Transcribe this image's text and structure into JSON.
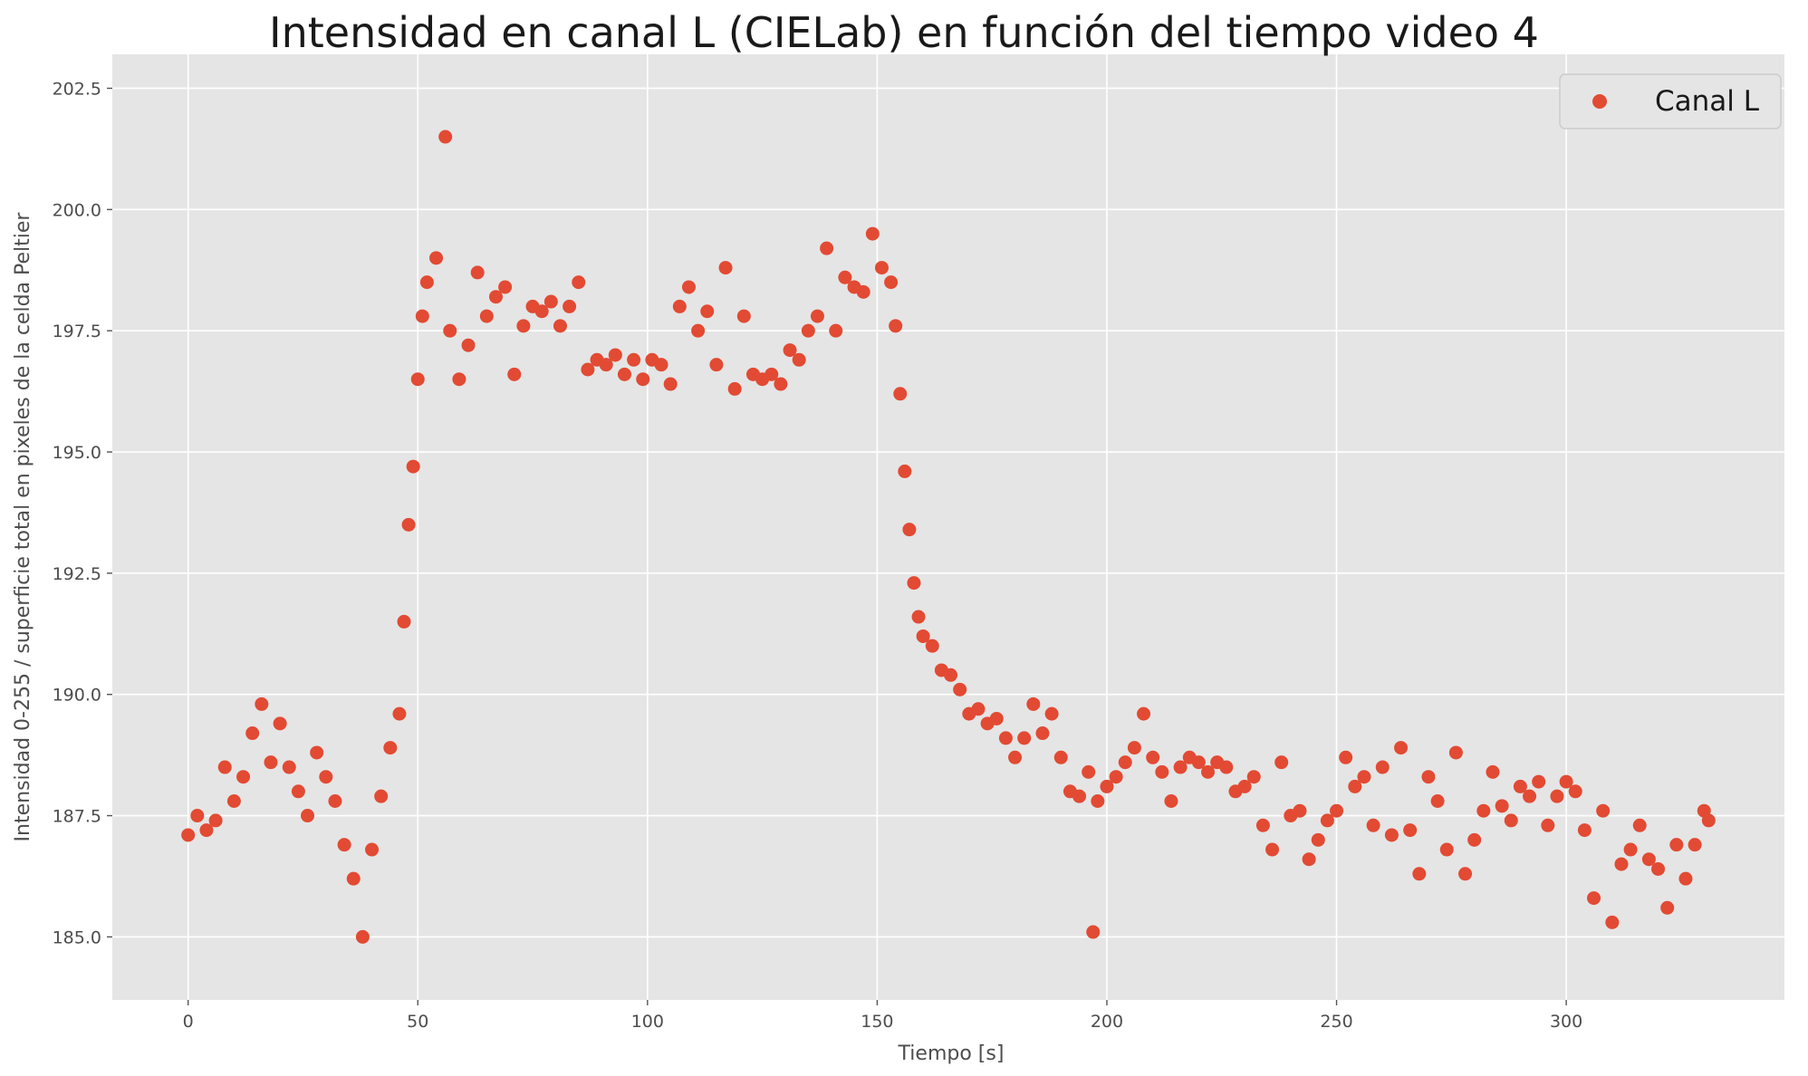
{
  "chart_data": {
    "type": "scatter",
    "title": "Intensidad en canal L (CIELab) en función del tiempo video 4",
    "xlabel": "Tiempo [s]",
    "ylabel": "Intensidad 0-255 / superficie total en pixeles de la celda Peltier",
    "xlim": [
      -16.5,
      347.5
    ],
    "ylim": [
      183.7,
      203.2
    ],
    "xticks": [
      0,
      50,
      100,
      150,
      200,
      250,
      300
    ],
    "xtick_labels": [
      "0",
      "50",
      "100",
      "150",
      "200",
      "250",
      "300"
    ],
    "yticks": [
      185.0,
      187.5,
      190.0,
      192.5,
      195.0,
      197.5,
      200.0,
      202.5
    ],
    "ytick_labels": [
      "185.0",
      "187.5",
      "190.0",
      "192.5",
      "195.0",
      "197.5",
      "200.0",
      "202.5"
    ],
    "grid": true,
    "legend_position": "top-right",
    "series": [
      {
        "name": "Canal L",
        "color": "#E24A33",
        "marker": "circle",
        "points": [
          [
            0,
            187.1
          ],
          [
            2,
            187.5
          ],
          [
            4,
            187.2
          ],
          [
            6,
            187.4
          ],
          [
            8,
            188.5
          ],
          [
            10,
            187.8
          ],
          [
            12,
            188.3
          ],
          [
            14,
            189.2
          ],
          [
            16,
            189.8
          ],
          [
            18,
            188.6
          ],
          [
            20,
            189.4
          ],
          [
            22,
            188.5
          ],
          [
            24,
            188.0
          ],
          [
            26,
            187.5
          ],
          [
            28,
            188.8
          ],
          [
            30,
            188.3
          ],
          [
            32,
            187.8
          ],
          [
            34,
            186.9
          ],
          [
            36,
            186.2
          ],
          [
            38,
            185.0
          ],
          [
            40,
            186.8
          ],
          [
            42,
            187.9
          ],
          [
            44,
            188.9
          ],
          [
            46,
            189.6
          ],
          [
            47,
            191.5
          ],
          [
            48,
            193.5
          ],
          [
            49,
            194.7
          ],
          [
            50,
            196.5
          ],
          [
            51,
            197.8
          ],
          [
            52,
            198.5
          ],
          [
            54,
            199.0
          ],
          [
            56,
            201.5
          ],
          [
            57,
            197.5
          ],
          [
            59,
            196.5
          ],
          [
            61,
            197.2
          ],
          [
            63,
            198.7
          ],
          [
            65,
            197.8
          ],
          [
            67,
            198.2
          ],
          [
            69,
            198.4
          ],
          [
            71,
            196.6
          ],
          [
            73,
            197.6
          ],
          [
            75,
            198.0
          ],
          [
            77,
            197.9
          ],
          [
            79,
            198.1
          ],
          [
            81,
            197.6
          ],
          [
            83,
            198.0
          ],
          [
            85,
            198.5
          ],
          [
            87,
            196.7
          ],
          [
            89,
            196.9
          ],
          [
            91,
            196.8
          ],
          [
            93,
            197.0
          ],
          [
            95,
            196.6
          ],
          [
            97,
            196.9
          ],
          [
            99,
            196.5
          ],
          [
            101,
            196.9
          ],
          [
            103,
            196.8
          ],
          [
            105,
            196.4
          ],
          [
            107,
            198.0
          ],
          [
            109,
            198.4
          ],
          [
            111,
            197.5
          ],
          [
            113,
            197.9
          ],
          [
            115,
            196.8
          ],
          [
            117,
            198.8
          ],
          [
            119,
            196.3
          ],
          [
            121,
            197.8
          ],
          [
            123,
            196.6
          ],
          [
            125,
            196.5
          ],
          [
            127,
            196.6
          ],
          [
            129,
            196.4
          ],
          [
            131,
            197.1
          ],
          [
            133,
            196.9
          ],
          [
            135,
            197.5
          ],
          [
            137,
            197.8
          ],
          [
            139,
            199.2
          ],
          [
            141,
            197.5
          ],
          [
            143,
            198.6
          ],
          [
            145,
            198.4
          ],
          [
            147,
            198.3
          ],
          [
            149,
            199.5
          ],
          [
            151,
            198.8
          ],
          [
            153,
            198.5
          ],
          [
            154,
            197.6
          ],
          [
            155,
            196.2
          ],
          [
            156,
            194.6
          ],
          [
            157,
            193.4
          ],
          [
            158,
            192.3
          ],
          [
            159,
            191.6
          ],
          [
            160,
            191.2
          ],
          [
            162,
            191.0
          ],
          [
            164,
            190.5
          ],
          [
            166,
            190.4
          ],
          [
            168,
            190.1
          ],
          [
            170,
            189.6
          ],
          [
            172,
            189.7
          ],
          [
            174,
            189.4
          ],
          [
            176,
            189.5
          ],
          [
            178,
            189.1
          ],
          [
            180,
            188.7
          ],
          [
            182,
            189.1
          ],
          [
            184,
            189.8
          ],
          [
            186,
            189.2
          ],
          [
            188,
            189.6
          ],
          [
            190,
            188.7
          ],
          [
            192,
            188.0
          ],
          [
            194,
            187.9
          ],
          [
            196,
            188.4
          ],
          [
            197,
            185.1
          ],
          [
            198,
            187.8
          ],
          [
            200,
            188.1
          ],
          [
            202,
            188.3
          ],
          [
            204,
            188.6
          ],
          [
            206,
            188.9
          ],
          [
            208,
            189.6
          ],
          [
            210,
            188.7
          ],
          [
            212,
            188.4
          ],
          [
            214,
            187.8
          ],
          [
            216,
            188.5
          ],
          [
            218,
            188.7
          ],
          [
            220,
            188.6
          ],
          [
            222,
            188.4
          ],
          [
            224,
            188.6
          ],
          [
            226,
            188.5
          ],
          [
            228,
            188.0
          ],
          [
            230,
            188.1
          ],
          [
            232,
            188.3
          ],
          [
            234,
            187.3
          ],
          [
            236,
            186.8
          ],
          [
            238,
            188.6
          ],
          [
            240,
            187.5
          ],
          [
            242,
            187.6
          ],
          [
            244,
            186.6
          ],
          [
            246,
            187.0
          ],
          [
            248,
            187.4
          ],
          [
            250,
            187.6
          ],
          [
            252,
            188.7
          ],
          [
            254,
            188.1
          ],
          [
            256,
            188.3
          ],
          [
            258,
            187.3
          ],
          [
            260,
            188.5
          ],
          [
            262,
            187.1
          ],
          [
            264,
            188.9
          ],
          [
            266,
            187.2
          ],
          [
            268,
            186.3
          ],
          [
            270,
            188.3
          ],
          [
            272,
            187.8
          ],
          [
            274,
            186.8
          ],
          [
            276,
            188.8
          ],
          [
            278,
            186.3
          ],
          [
            280,
            187.0
          ],
          [
            282,
            187.6
          ],
          [
            284,
            188.4
          ],
          [
            286,
            187.7
          ],
          [
            288,
            187.4
          ],
          [
            290,
            188.1
          ],
          [
            292,
            187.9
          ],
          [
            294,
            188.2
          ],
          [
            296,
            187.3
          ],
          [
            298,
            187.9
          ],
          [
            300,
            188.2
          ],
          [
            302,
            188.0
          ],
          [
            304,
            187.2
          ],
          [
            306,
            185.8
          ],
          [
            308,
            187.6
          ],
          [
            310,
            185.3
          ],
          [
            312,
            186.5
          ],
          [
            314,
            186.8
          ],
          [
            316,
            187.3
          ],
          [
            318,
            186.6
          ],
          [
            320,
            186.4
          ],
          [
            322,
            185.6
          ],
          [
            324,
            186.9
          ],
          [
            326,
            186.2
          ],
          [
            328,
            186.9
          ],
          [
            330,
            187.6
          ],
          [
            331,
            187.4
          ]
        ]
      }
    ]
  }
}
